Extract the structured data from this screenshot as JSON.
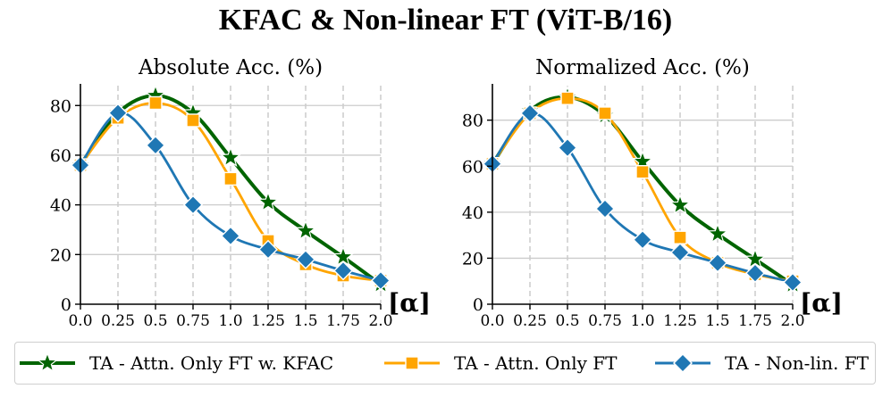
{
  "figure": {
    "title": "KFAC & Non-linear FT (ViT-B/16)"
  },
  "colors": {
    "kfac": "#006400",
    "attn": "#FFA500",
    "nonlin": "#1f77b4",
    "grid": "#cccccc"
  },
  "legend": {
    "items": [
      {
        "label": "TA - Attn. Only FT w. KFAC",
        "marker": "star"
      },
      {
        "label": "TA - Attn. Only FT",
        "marker": "square"
      },
      {
        "label": "TA - Non-lin. FT",
        "marker": "diamond"
      }
    ]
  },
  "chart_data": [
    {
      "type": "line",
      "title": "Absolute Acc. (%)",
      "xlabel": "[α]",
      "ylabel": "",
      "x": [
        0.0,
        0.25,
        0.5,
        0.75,
        1.0,
        1.25,
        1.5,
        1.75,
        2.0
      ],
      "xticks": [
        "0.0",
        "0.25",
        "0.5",
        "0.75",
        "1.0",
        "1.25",
        "1.5",
        "1.75",
        "2.0"
      ],
      "ylim": [
        0,
        88
      ],
      "yticks": [
        0,
        20,
        40,
        60,
        80
      ],
      "series": [
        {
          "name": "TA - Attn. Only FT w. KFAC",
          "values": [
            56,
            77,
            84,
            77,
            59,
            41,
            29.5,
            19,
            8
          ]
        },
        {
          "name": "TA - Attn. Only FT",
          "values": [
            56,
            75,
            81,
            74,
            50.5,
            25.5,
            16,
            11.5,
            9.5
          ]
        },
        {
          "name": "TA - Non-lin. FT",
          "values": [
            56,
            77,
            64,
            40,
            27.5,
            22,
            18,
            13.5,
            9.5
          ]
        }
      ],
      "grid": true
    },
    {
      "type": "line",
      "title": "Normalized Acc. (%)",
      "xlabel": "[α]",
      "ylabel": "",
      "x": [
        0.0,
        0.25,
        0.5,
        0.75,
        1.0,
        1.25,
        1.5,
        1.75,
        2.0
      ],
      "xticks": [
        "0.0",
        "0.25",
        "0.5",
        "0.75",
        "1.0",
        "1.25",
        "1.5",
        "1.75",
        "2.0"
      ],
      "ylim": [
        0,
        95
      ],
      "yticks": [
        0,
        20,
        40,
        60,
        80
      ],
      "series": [
        {
          "name": "TA - Attn. Only FT w. KFAC",
          "values": [
            61,
            84,
            90,
            82,
            62,
            43,
            30.5,
            19.5,
            8.5
          ]
        },
        {
          "name": "TA - Attn. Only FT",
          "values": [
            61,
            83,
            89.5,
            83,
            57.5,
            29,
            18,
            13,
            10
          ]
        },
        {
          "name": "TA - Non-lin. FT",
          "values": [
            61,
            83,
            68,
            41.5,
            28,
            22.5,
            18,
            13.5,
            9.5
          ]
        }
      ],
      "grid": true
    }
  ]
}
